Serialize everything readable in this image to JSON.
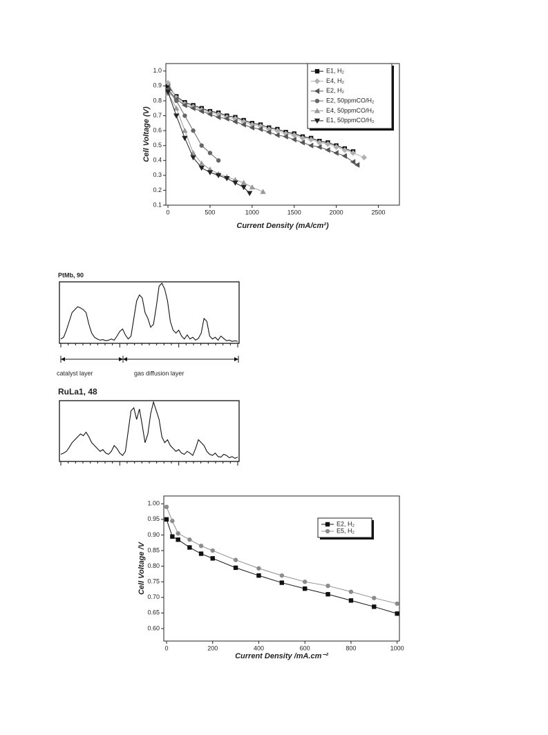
{
  "chart_data": [
    {
      "type": "line",
      "xlabel": "Current Density (mA/cm²)",
      "ylabel": "Cell Voltage (V)",
      "xlim": [
        -25,
        2750
      ],
      "xticks": [
        0,
        500,
        1000,
        1500,
        2000,
        2500
      ],
      "ylim": [
        0.1,
        1.05
      ],
      "yticks": [
        0.1,
        0.2,
        0.3,
        0.4,
        0.5,
        0.6,
        0.7,
        0.8,
        0.9,
        {
          "value": 1,
          "label": "1.0"
        }
      ],
      "legend": "top-right",
      "series": [
        {
          "name": "E1, H₂",
          "color": "#111111",
          "marker": "square",
          "x": [
            0,
            100,
            200,
            300,
            400,
            500,
            600,
            700,
            800,
            900,
            1000,
            1100,
            1200,
            1300,
            1400,
            1500,
            1600,
            1700,
            1800,
            1900,
            2000,
            2100,
            2200
          ],
          "values": [
            0.9,
            0.83,
            0.79,
            0.77,
            0.75,
            0.73,
            0.72,
            0.7,
            0.69,
            0.67,
            0.65,
            0.64,
            0.62,
            0.61,
            0.59,
            0.58,
            0.56,
            0.55,
            0.53,
            0.52,
            0.5,
            0.48,
            0.46
          ]
        },
        {
          "name": "E4, H₂",
          "color": "#b0b0b0",
          "marker": "diamond",
          "x": [
            0,
            100,
            200,
            300,
            400,
            500,
            600,
            700,
            800,
            900,
            1000,
            1100,
            1200,
            1300,
            1400,
            1500,
            1600,
            1700,
            1800,
            1900,
            2000,
            2100,
            2200,
            2330
          ],
          "values": [
            0.92,
            0.82,
            0.78,
            0.76,
            0.74,
            0.72,
            0.71,
            0.69,
            0.68,
            0.66,
            0.64,
            0.63,
            0.61,
            0.6,
            0.58,
            0.57,
            0.55,
            0.54,
            0.52,
            0.51,
            0.49,
            0.47,
            0.45,
            0.42
          ]
        },
        {
          "name": "E2, H₂",
          "color": "#555555",
          "marker": "triangle-left",
          "x": [
            0,
            100,
            200,
            300,
            400,
            500,
            600,
            700,
            800,
            900,
            1000,
            1100,
            1200,
            1300,
            1400,
            1500,
            1600,
            1700,
            1800,
            1900,
            2000,
            2100,
            2200,
            2250
          ],
          "values": [
            0.88,
            0.81,
            0.77,
            0.75,
            0.73,
            0.71,
            0.69,
            0.68,
            0.66,
            0.64,
            0.62,
            0.61,
            0.59,
            0.57,
            0.56,
            0.54,
            0.52,
            0.5,
            0.49,
            0.47,
            0.45,
            0.43,
            0.39,
            0.37
          ]
        },
        {
          "name": "E2, 50ppmCO/H₂",
          "color": "#666666",
          "marker": "circle",
          "x": [
            0,
            100,
            200,
            300,
            400,
            500,
            600
          ],
          "values": [
            0.87,
            0.8,
            0.7,
            0.6,
            0.5,
            0.45,
            0.4
          ]
        },
        {
          "name": "E4, 50ppmCO/H₂",
          "color": "#999999",
          "marker": "triangle-up",
          "x": [
            0,
            100,
            200,
            300,
            400,
            500,
            600,
            700,
            800,
            900,
            1000,
            1130
          ],
          "values": [
            0.85,
            0.75,
            0.6,
            0.45,
            0.38,
            0.34,
            0.31,
            0.29,
            0.27,
            0.25,
            0.22,
            0.19
          ]
        },
        {
          "name": "E1, 50ppmCO/H₂",
          "color": "#222222",
          "marker": "triangle-down",
          "x": [
            0,
            100,
            200,
            300,
            400,
            500,
            600,
            700,
            800,
            900,
            970
          ],
          "values": [
            0.86,
            0.7,
            0.55,
            0.42,
            0.35,
            0.32,
            0.3,
            0.28,
            0.25,
            0.22,
            0.18
          ]
        }
      ]
    },
    {
      "type": "profile",
      "title": "PtMb, 90",
      "ylim": [
        0,
        100
      ],
      "annotations": [
        "catalyst layer",
        "gas diffusion layer"
      ],
      "values": [
        5,
        8,
        20,
        35,
        50,
        55,
        60,
        58,
        55,
        50,
        30,
        15,
        8,
        5,
        3,
        4,
        2,
        3,
        5,
        3,
        10,
        18,
        22,
        12,
        5,
        10,
        40,
        70,
        80,
        75,
        50,
        40,
        25,
        30,
        60,
        95,
        100,
        90,
        70,
        35,
        20,
        15,
        20,
        10,
        5,
        12,
        5,
        8,
        3,
        6,
        15,
        40,
        35,
        10,
        5,
        8,
        3,
        10,
        6,
        2,
        3,
        1,
        2,
        1
      ]
    },
    {
      "type": "profile",
      "title": "RuLa1, 48",
      "ylim": [
        0,
        100
      ],
      "values": [
        10,
        12,
        15,
        22,
        30,
        35,
        40,
        45,
        42,
        48,
        40,
        30,
        25,
        20,
        15,
        18,
        12,
        10,
        15,
        25,
        20,
        12,
        8,
        15,
        50,
        85,
        90,
        70,
        88,
        60,
        30,
        45,
        80,
        100,
        85,
        70,
        40,
        30,
        35,
        25,
        20,
        15,
        18,
        12,
        10,
        15,
        12,
        8,
        20,
        35,
        30,
        25,
        15,
        10,
        8,
        12,
        6,
        5,
        10,
        8,
        4,
        6,
        3,
        5
      ]
    },
    {
      "type": "line",
      "xlabel": "Current Density /mA.cm⁻²",
      "ylabel": "Cell Voltage /V",
      "xlim": [
        -12,
        1010
      ],
      "xticks": [
        0,
        200,
        400,
        600,
        800,
        1000
      ],
      "ylim": [
        0.56,
        1.025
      ],
      "yticks": [
        {
          "value": 0.6,
          "label": "0.60"
        },
        0.65,
        {
          "value": 0.7,
          "label": "0.70"
        },
        0.75,
        {
          "value": 0.8,
          "label": "0.80"
        },
        0.85,
        {
          "value": 0.9,
          "label": "0.90"
        },
        0.95,
        {
          "value": 1,
          "label": "1.00"
        }
      ],
      "legend": "top-right",
      "series": [
        {
          "name": "E2, H₂",
          "color": "#111111",
          "marker": "square",
          "x": [
            0,
            25,
            50,
            100,
            150,
            200,
            300,
            400,
            500,
            600,
            700,
            800,
            900,
            1000
          ],
          "values": [
            0.95,
            0.895,
            0.885,
            0.86,
            0.84,
            0.825,
            0.795,
            0.77,
            0.747,
            0.728,
            0.71,
            0.69,
            0.67,
            0.648
          ]
        },
        {
          "name": "E5, H₂",
          "color": "#8c8c8c",
          "marker": "circle",
          "x": [
            0,
            25,
            50,
            100,
            150,
            200,
            300,
            400,
            500,
            600,
            700,
            800,
            900,
            1000
          ],
          "values": [
            0.99,
            0.945,
            0.905,
            0.885,
            0.865,
            0.85,
            0.82,
            0.793,
            0.77,
            0.75,
            0.737,
            0.718,
            0.698,
            0.68
          ]
        }
      ]
    }
  ]
}
